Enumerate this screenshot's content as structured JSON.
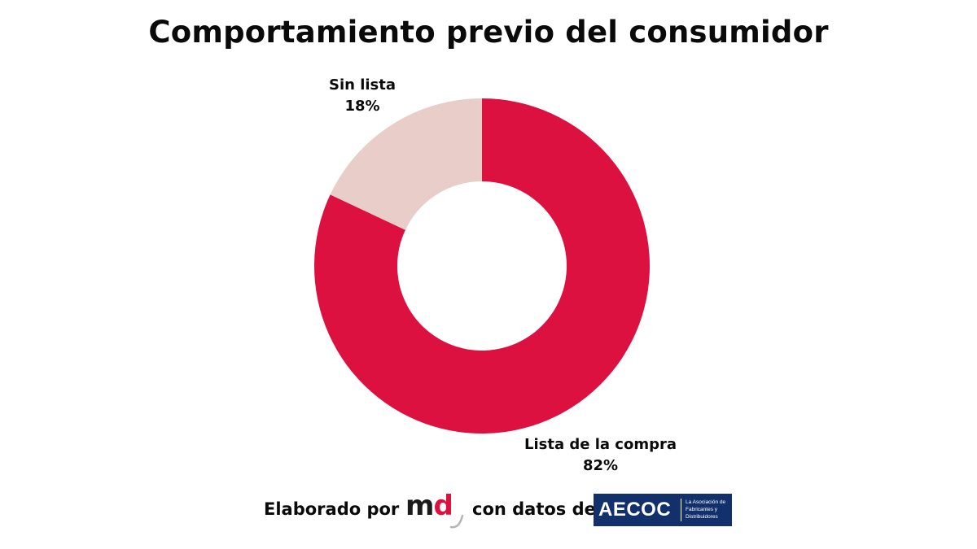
{
  "title": "Comportamiento previo del consumidor",
  "chart_data": {
    "type": "pie",
    "title": "Comportamiento previo del consumidor",
    "donut": true,
    "slices": [
      {
        "label": "Lista de la compra",
        "value": 82,
        "value_label": "82%",
        "color": "#dc1140"
      },
      {
        "label": "Sin lista",
        "value": 18,
        "value_label": "18%",
        "color": "#e8cdc8"
      }
    ]
  },
  "footer": {
    "elaborado": "Elaborado por",
    "md_m": "m",
    "md_d": "d",
    "con_datos": "con datos de",
    "aecoc_word": "AECOC",
    "aecoc_tagline": "La Asociación de Fabricantes y Distribuidores"
  }
}
